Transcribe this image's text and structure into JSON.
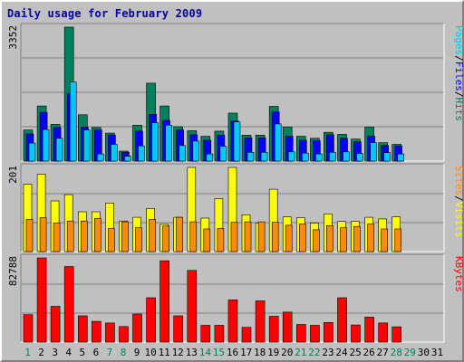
{
  "title": "Daily usage for February 2009",
  "colors": {
    "hits": "#00805c",
    "files": "#0000ff",
    "pages": "#00c8ff",
    "visits": "#ffff00",
    "sites": "#ff8c00",
    "kbytes": "#ff0000",
    "weekday_label": "#000000",
    "weekend_label": "#00805c",
    "panel_bg": "#c0c0c0",
    "gridline": "#808080"
  },
  "chart_data": [
    {
      "type": "bar",
      "title": "",
      "y_tick_label": "3352",
      "ylim": [
        0,
        3352
      ],
      "legend": "right",
      "legend_parts": [
        {
          "text": "Pages",
          "color_key": "pages"
        },
        {
          "text": "/",
          "color_key": "sep"
        },
        {
          "text": "Files",
          "color_key": "files"
        },
        {
          "text": "/",
          "color_key": "sep"
        },
        {
          "text": "Hits",
          "color_key": "hits"
        }
      ],
      "categories": [
        "1",
        "2",
        "3",
        "4",
        "5",
        "6",
        "7",
        "8",
        "9",
        "10",
        "11",
        "12",
        "13",
        "14",
        "15",
        "16",
        "17",
        "18",
        "19",
        "20",
        "21",
        "22",
        "23",
        "24",
        "25",
        "26",
        "27",
        "28",
        "29",
        "30",
        "31"
      ],
      "series": [
        {
          "name": "Hits",
          "color_key": "hits",
          "values": [
            780,
            1380,
            920,
            3352,
            1160,
            840,
            700,
            250,
            900,
            1950,
            1380,
            860,
            760,
            620,
            750,
            1200,
            650,
            650,
            1370,
            850,
            620,
            570,
            720,
            670,
            550,
            850,
            460,
            420,
            null,
            null,
            null
          ]
        },
        {
          "name": "Files",
          "color_key": "files",
          "values": [
            680,
            1220,
            840,
            1680,
            850,
            780,
            650,
            220,
            750,
            1170,
            1020,
            780,
            660,
            520,
            650,
            1000,
            580,
            580,
            1230,
            620,
            520,
            510,
            660,
            570,
            480,
            620,
            390,
            380,
            null,
            null,
            null
          ]
        },
        {
          "name": "Pages",
          "color_key": "pages",
          "values": [
            450,
            790,
            570,
            1980,
            780,
            180,
            420,
            120,
            380,
            960,
            900,
            390,
            500,
            180,
            370,
            980,
            220,
            220,
            930,
            230,
            200,
            180,
            220,
            230,
            190,
            460,
            210,
            180,
            null,
            null,
            null
          ]
        }
      ]
    },
    {
      "type": "bar",
      "title": "",
      "y_tick_label": "201",
      "ylim": [
        0,
        201
      ],
      "legend": "right",
      "legend_parts": [
        {
          "text": "Sites",
          "color_key": "sites"
        },
        {
          "text": "/",
          "color_key": "sep"
        },
        {
          "text": "Visits",
          "color_key": "visits"
        }
      ],
      "categories": [
        "1",
        "2",
        "3",
        "4",
        "5",
        "6",
        "7",
        "8",
        "9",
        "10",
        "11",
        "12",
        "13",
        "14",
        "15",
        "16",
        "17",
        "18",
        "19",
        "20",
        "21",
        "22",
        "23",
        "24",
        "25",
        "26",
        "27",
        "28",
        "29",
        "30",
        "31"
      ],
      "series": [
        {
          "name": "Visits",
          "color_key": "visits",
          "values": [
            161,
            185,
            121,
            136,
            95,
            95,
            116,
            73,
            82,
            103,
            65,
            82,
            201,
            80,
            126,
            201,
            88,
            68,
            149,
            83,
            81,
            68,
            90,
            72,
            72,
            82,
            78,
            83,
            null,
            null,
            null
          ]
        },
        {
          "name": "Sites",
          "color_key": "sites",
          "values": [
            77,
            81,
            68,
            73,
            73,
            79,
            55,
            71,
            57,
            77,
            61,
            82,
            71,
            54,
            55,
            70,
            71,
            71,
            70,
            63,
            66,
            52,
            62,
            57,
            60,
            66,
            54,
            54,
            null,
            null,
            null
          ]
        }
      ]
    },
    {
      "type": "bar",
      "title": "",
      "y_tick_label": "82788",
      "ylim": [
        0,
        82788
      ],
      "legend": "right",
      "legend_parts": [
        {
          "text": "KBytes",
          "color_key": "kbytes"
        }
      ],
      "categories": [
        "1",
        "2",
        "3",
        "4",
        "5",
        "6",
        "7",
        "8",
        "9",
        "10",
        "11",
        "12",
        "13",
        "14",
        "15",
        "16",
        "17",
        "18",
        "19",
        "20",
        "21",
        "22",
        "23",
        "24",
        "25",
        "26",
        "27",
        "28",
        "29",
        "30",
        "31"
      ],
      "series": [
        {
          "name": "KBytes",
          "color_key": "kbytes",
          "values": [
            27000,
            82788,
            35200,
            74300,
            25800,
            20400,
            18800,
            15300,
            27600,
            43600,
            80000,
            25800,
            70500,
            16500,
            16500,
            41500,
            14500,
            40600,
            25400,
            29500,
            17400,
            16500,
            19300,
            43600,
            16800,
            24600,
            18800,
            15000,
            null,
            null,
            null
          ]
        }
      ]
    }
  ],
  "x_axis": {
    "labels": [
      "1",
      "2",
      "3",
      "4",
      "5",
      "6",
      "7",
      "8",
      "9",
      "10",
      "11",
      "12",
      "13",
      "14",
      "15",
      "16",
      "17",
      "18",
      "19",
      "20",
      "21",
      "22",
      "23",
      "24",
      "25",
      "26",
      "27",
      "28",
      "29",
      "30",
      "31"
    ],
    "weekend": [
      1,
      7,
      8,
      14,
      15,
      21,
      22,
      28,
      29
    ]
  }
}
